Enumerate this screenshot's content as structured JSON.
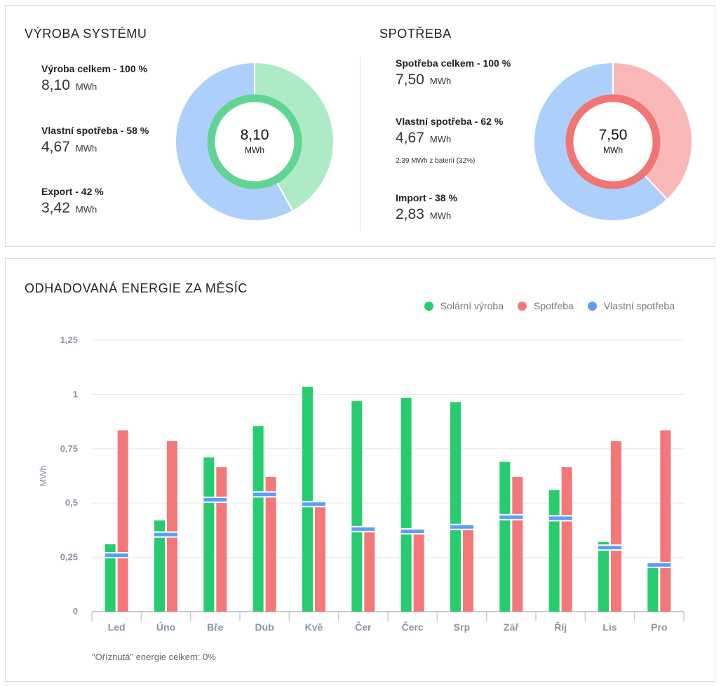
{
  "production": {
    "title": "VÝROBA SYSTÉMU",
    "stats": [
      {
        "label": "Výroba celkem - 100 %",
        "value": "8,10",
        "unit": "MWh"
      },
      {
        "label": "Vlastní spotřeba - 58 %",
        "value": "4,67",
        "unit": "MWh"
      },
      {
        "label": "Export - 42 %",
        "value": "3,42",
        "unit": "MWh"
      }
    ],
    "donut": {
      "center_value": "8,10",
      "center_unit": "MWh",
      "segments": [
        {
          "name": "Export",
          "fraction": 0.42,
          "color": "#aeeac6"
        },
        {
          "name": "Vlastní spotřeba",
          "fraction": 0.58,
          "color": "#acd0fb"
        }
      ],
      "ring_color": "#5fd493"
    }
  },
  "consumption": {
    "title": "SPOTŘEBA",
    "stats": [
      {
        "label": "Spotřeba celkem - 100 %",
        "value": "7,50",
        "unit": "MWh"
      },
      {
        "label": "Vlastní spotřeba - 62 %",
        "value": "4,67",
        "unit": "MWh",
        "note": "2,39 MWh z baterií (32%)"
      },
      {
        "label": "Import - 38 %",
        "value": "2,83",
        "unit": "MWh"
      }
    ],
    "donut": {
      "center_value": "7,50",
      "center_unit": "MWh",
      "segments": [
        {
          "name": "Import",
          "fraction": 0.38,
          "color": "#f9b8b8"
        },
        {
          "name": "Vlastní spotřeba",
          "fraction": 0.62,
          "color": "#acd0fb"
        }
      ],
      "ring_color": "#f07575"
    }
  },
  "chart_data": {
    "type": "bar",
    "title": "ODHADOVANÁ ENERGIE ZA MĚSÍC",
    "ylabel": "MWh",
    "xlabel": "",
    "ylim": [
      0,
      1.25
    ],
    "yticks": [
      0,
      0.25,
      0.5,
      0.75,
      1,
      1.25
    ],
    "ytick_labels": [
      "0",
      "0,25",
      "0,5",
      "0,75",
      "1",
      "1,25"
    ],
    "grid": true,
    "legend_position": "top-right",
    "categories": [
      "Led",
      "Úno",
      "Bře",
      "Dub",
      "Kvě",
      "Čer",
      "Čerc",
      "Srp",
      "Zář",
      "Říj",
      "Lis",
      "Pro"
    ],
    "series": [
      {
        "name": "Solární výroba",
        "color": "#27cc6e",
        "values": [
          0.31,
          0.42,
          0.71,
          0.855,
          1.035,
          0.97,
          0.985,
          0.965,
          0.69,
          0.56,
          0.32,
          0.205
        ]
      },
      {
        "name": "Spotřeba",
        "color": "#f47878",
        "values": [
          0.835,
          0.785,
          0.665,
          0.62,
          0.485,
          0.365,
          0.355,
          0.38,
          0.62,
          0.665,
          0.785,
          0.835
        ]
      },
      {
        "name": "Vlastní spotřeba",
        "color": "#5b9ff5",
        "values": [
          0.26,
          0.355,
          0.515,
          0.54,
          0.495,
          0.38,
          0.37,
          0.39,
          0.435,
          0.43,
          0.295,
          0.215
        ]
      }
    ],
    "footnote": "\"Oříznutá\" energie celkem: 0%"
  }
}
